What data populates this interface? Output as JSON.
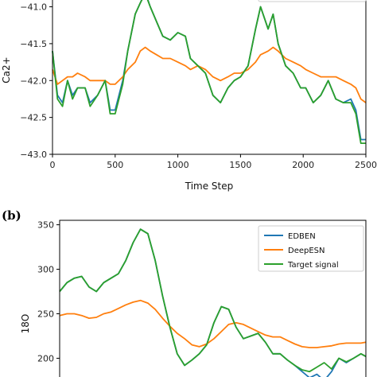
{
  "chart_data": [
    {
      "type": "line",
      "title": "",
      "xlabel": "Time Step",
      "ylabel": "Ca2+",
      "xlim": [
        0,
        2500
      ],
      "ylim": [
        -43.0,
        -40.8
      ],
      "xticks": [
        0,
        500,
        1000,
        1500,
        2000,
        2500
      ],
      "yticks": [
        -43.0,
        -42.5,
        -42.0,
        -41.5,
        -41.0
      ],
      "xtick_labels": [
        "0",
        "500",
        "1000",
        "1500",
        "2000",
        "2500"
      ],
      "ytick_labels": [
        "−43.0",
        "−42.5",
        "−42.0",
        "−41.5",
        "−41.0"
      ],
      "grid": false,
      "x": [
        0,
        40,
        80,
        120,
        160,
        200,
        260,
        300,
        360,
        420,
        460,
        500,
        560,
        600,
        660,
        700,
        740,
        780,
        830,
        880,
        940,
        1000,
        1060,
        1100,
        1160,
        1220,
        1280,
        1340,
        1400,
        1450,
        1500,
        1560,
        1620,
        1660,
        1720,
        1760,
        1800,
        1860,
        1920,
        1980,
        2020,
        2080,
        2140,
        2200,
        2260,
        2320,
        2380,
        2420,
        2460,
        2500
      ],
      "series": [
        {
          "color": "#1f77b4",
          "values": [
            -41.6,
            -42.2,
            -42.3,
            -42.0,
            -42.2,
            -42.1,
            -42.1,
            -42.3,
            -42.2,
            -42.0,
            -42.4,
            -42.4,
            -42.0,
            -41.6,
            -41.1,
            -40.95,
            -40.8,
            -41.0,
            -41.2,
            -41.4,
            -41.45,
            -41.35,
            -41.4,
            -41.7,
            -41.8,
            -41.9,
            -42.2,
            -42.3,
            -42.1,
            -42.0,
            -41.95,
            -41.8,
            -41.3,
            -41.0,
            -41.3,
            -41.1,
            -41.5,
            -41.8,
            -41.9,
            -42.1,
            -42.1,
            -42.3,
            -42.2,
            -42.0,
            -42.25,
            -42.3,
            -42.25,
            -42.4,
            -42.8,
            -42.8
          ]
        },
        {
          "color": "#ff7f0e",
          "values": [
            -41.85,
            -42.05,
            -42.0,
            -41.95,
            -41.95,
            -41.9,
            -41.95,
            -42.0,
            -42.0,
            -42.0,
            -42.05,
            -42.05,
            -41.95,
            -41.85,
            -41.75,
            -41.6,
            -41.55,
            -41.6,
            -41.65,
            -41.7,
            -41.7,
            -41.75,
            -41.8,
            -41.85,
            -41.8,
            -41.85,
            -41.95,
            -42.0,
            -41.95,
            -41.9,
            -41.9,
            -41.85,
            -41.75,
            -41.65,
            -41.6,
            -41.55,
            -41.6,
            -41.7,
            -41.75,
            -41.8,
            -41.85,
            -41.9,
            -41.95,
            -41.95,
            -41.95,
            -42.0,
            -42.05,
            -42.1,
            -42.25,
            -42.3
          ]
        },
        {
          "color": "#2ca02c",
          "values": [
            -41.6,
            -42.25,
            -42.35,
            -42.0,
            -42.25,
            -42.1,
            -42.1,
            -42.35,
            -42.2,
            -42.0,
            -42.45,
            -42.45,
            -42.05,
            -41.6,
            -41.1,
            -40.95,
            -40.82,
            -41.0,
            -41.2,
            -41.4,
            -41.45,
            -41.35,
            -41.4,
            -41.7,
            -41.8,
            -41.9,
            -42.2,
            -42.3,
            -42.1,
            -42.0,
            -41.95,
            -41.8,
            -41.3,
            -41.0,
            -41.3,
            -41.1,
            -41.5,
            -41.8,
            -41.9,
            -42.1,
            -42.1,
            -42.3,
            -42.2,
            -42.0,
            -42.25,
            -42.3,
            -42.3,
            -42.45,
            -42.85,
            -42.85
          ]
        }
      ]
    },
    {
      "type": "line",
      "panel_label": "(b)",
      "title": "",
      "xlabel": "",
      "ylabel": "18O",
      "xlim": [
        0,
        2500
      ],
      "ylim": [
        170,
        355
      ],
      "yticks": [
        200,
        250,
        300,
        350
      ],
      "ytick_labels": [
        "200",
        "250",
        "300",
        "350"
      ],
      "grid": false,
      "legend_position": "top-right",
      "x": [
        0,
        60,
        120,
        180,
        240,
        300,
        360,
        420,
        480,
        540,
        600,
        660,
        720,
        780,
        840,
        900,
        960,
        1020,
        1080,
        1140,
        1200,
        1260,
        1320,
        1380,
        1440,
        1500,
        1560,
        1620,
        1680,
        1740,
        1800,
        1860,
        1920,
        1980,
        2040,
        2100,
        2160,
        2220,
        2280,
        2340,
        2400,
        2460,
        2500
      ],
      "series": [
        {
          "name": "EDBEN",
          "color": "#1f77b4",
          "values": [
            275,
            285,
            290,
            292,
            280,
            275,
            285,
            290,
            295,
            310,
            330,
            345,
            340,
            310,
            270,
            235,
            205,
            192,
            198,
            205,
            215,
            240,
            258,
            255,
            235,
            222,
            225,
            228,
            218,
            205,
            205,
            198,
            192,
            185,
            178,
            182,
            175,
            185,
            200,
            195,
            200,
            205,
            202
          ]
        },
        {
          "name": "DeepESN",
          "color": "#ff7f0e",
          "values": [
            248,
            250,
            250,
            248,
            245,
            246,
            250,
            252,
            256,
            260,
            263,
            265,
            262,
            255,
            245,
            236,
            228,
            222,
            215,
            213,
            216,
            222,
            230,
            238,
            240,
            238,
            234,
            230,
            226,
            224,
            224,
            220,
            216,
            213,
            212,
            212,
            213,
            214,
            216,
            217,
            217,
            217,
            218
          ]
        },
        {
          "name": "Target signal",
          "color": "#2ca02c",
          "values": [
            275,
            285,
            290,
            292,
            280,
            275,
            285,
            290,
            295,
            310,
            330,
            345,
            340,
            310,
            270,
            235,
            205,
            192,
            198,
            205,
            215,
            240,
            258,
            255,
            235,
            222,
            225,
            228,
            218,
            205,
            205,
            198,
            192,
            187,
            185,
            190,
            195,
            188,
            200,
            196,
            200,
            205,
            202
          ]
        }
      ]
    }
  ]
}
